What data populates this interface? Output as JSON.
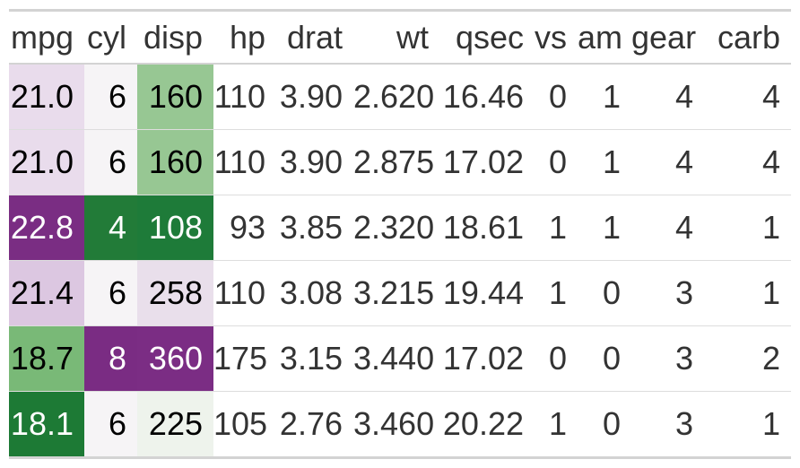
{
  "table": {
    "columns": [
      "mpg",
      "cyl",
      "disp",
      "hp",
      "drat",
      "wt",
      "qsec",
      "vs",
      "am",
      "gear",
      "carb"
    ],
    "rows": [
      {
        "cells": [
          {
            "v": "21.0",
            "bg": "#e9dcec",
            "fg": "#000000"
          },
          {
            "v": "6",
            "bg": "#f6f4f6",
            "fg": "#000000"
          },
          {
            "v": "160",
            "bg": "#97c793",
            "fg": "#000000"
          },
          {
            "v": "110"
          },
          {
            "v": "3.90"
          },
          {
            "v": "2.620"
          },
          {
            "v": "16.46"
          },
          {
            "v": "0"
          },
          {
            "v": "1"
          },
          {
            "v": "4"
          },
          {
            "v": "4"
          }
        ]
      },
      {
        "cells": [
          {
            "v": "21.0",
            "bg": "#e9dcec",
            "fg": "#000000"
          },
          {
            "v": "6",
            "bg": "#f6f4f6",
            "fg": "#000000"
          },
          {
            "v": "160",
            "bg": "#97c793",
            "fg": "#000000"
          },
          {
            "v": "110"
          },
          {
            "v": "3.90"
          },
          {
            "v": "2.875"
          },
          {
            "v": "17.02"
          },
          {
            "v": "0"
          },
          {
            "v": "1"
          },
          {
            "v": "4"
          },
          {
            "v": "4"
          }
        ]
      },
      {
        "cells": [
          {
            "v": "22.8",
            "bg": "#7a2d83",
            "fg": "#ffffff"
          },
          {
            "v": "4",
            "bg": "#227b38",
            "fg": "#ffffff"
          },
          {
            "v": "108",
            "bg": "#1e7b39",
            "fg": "#ffffff"
          },
          {
            "v": "93"
          },
          {
            "v": "3.85"
          },
          {
            "v": "2.320"
          },
          {
            "v": "18.61"
          },
          {
            "v": "1"
          },
          {
            "v": "1"
          },
          {
            "v": "4"
          },
          {
            "v": "1"
          }
        ]
      },
      {
        "cells": [
          {
            "v": "21.4",
            "bg": "#dcc7e1",
            "fg": "#000000"
          },
          {
            "v": "6",
            "bg": "#f6f4f6",
            "fg": "#000000"
          },
          {
            "v": "258",
            "bg": "#e9dfeb",
            "fg": "#000000"
          },
          {
            "v": "110"
          },
          {
            "v": "3.08"
          },
          {
            "v": "3.215"
          },
          {
            "v": "19.44"
          },
          {
            "v": "1"
          },
          {
            "v": "0"
          },
          {
            "v": "3"
          },
          {
            "v": "1"
          }
        ]
      },
      {
        "cells": [
          {
            "v": "18.7",
            "bg": "#79b977",
            "fg": "#000000"
          },
          {
            "v": "8",
            "bg": "#7a2c83",
            "fg": "#ffffff"
          },
          {
            "v": "360",
            "bg": "#7b2d84",
            "fg": "#ffffff"
          },
          {
            "v": "175"
          },
          {
            "v": "3.15"
          },
          {
            "v": "3.440"
          },
          {
            "v": "17.02"
          },
          {
            "v": "0"
          },
          {
            "v": "0"
          },
          {
            "v": "3"
          },
          {
            "v": "2"
          }
        ]
      },
      {
        "cells": [
          {
            "v": "18.1",
            "bg": "#1d7a35",
            "fg": "#ffffff"
          },
          {
            "v": "6",
            "bg": "#f6f4f6",
            "fg": "#000000"
          },
          {
            "v": "225",
            "bg": "#eef3ec",
            "fg": "#000000"
          },
          {
            "v": "105"
          },
          {
            "v": "2.76"
          },
          {
            "v": "3.460"
          },
          {
            "v": "20.22"
          },
          {
            "v": "1"
          },
          {
            "v": "0"
          },
          {
            "v": "3"
          },
          {
            "v": "1"
          }
        ]
      }
    ]
  },
  "colors": {
    "rule_gray": "#d3d3d3",
    "row_divider": "#dddddd",
    "text_default": "#333333",
    "tile_dark_purple": "#7a2d83",
    "tile_light_purple": "#e9dcec",
    "tile_dark_green": "#1e7b38",
    "tile_light_green": "#97c793",
    "tile_neutral": "#f6f4f6"
  },
  "chart_data": {
    "type": "table",
    "title": "",
    "columns": [
      "mpg",
      "cyl",
      "disp",
      "hp",
      "drat",
      "wt",
      "qsec",
      "vs",
      "am",
      "gear",
      "carb"
    ],
    "rows": [
      [
        21.0,
        6,
        160,
        110,
        3.9,
        2.62,
        16.46,
        0,
        1,
        4,
        4
      ],
      [
        21.0,
        6,
        160,
        110,
        3.9,
        2.875,
        17.02,
        0,
        1,
        4,
        4
      ],
      [
        22.8,
        4,
        108,
        93,
        3.85,
        2.32,
        18.61,
        1,
        1,
        4,
        1
      ],
      [
        21.4,
        6,
        258,
        110,
        3.08,
        3.215,
        19.44,
        1,
        0,
        3,
        1
      ],
      [
        18.7,
        8,
        360,
        175,
        3.15,
        3.44,
        17.02,
        0,
        0,
        3,
        2
      ],
      [
        18.1,
        6,
        225,
        105,
        2.76,
        3.46,
        20.22,
        1,
        0,
        3,
        1
      ]
    ],
    "styling_note": "Columns mpg, cyl and disp carry a diverging green-to-purple (PRGn) color-tile fill; low values are dark green, mid values near-white, high values dark purple.",
    "legend_position": "none",
    "grid": "horizontal row rules only"
  }
}
